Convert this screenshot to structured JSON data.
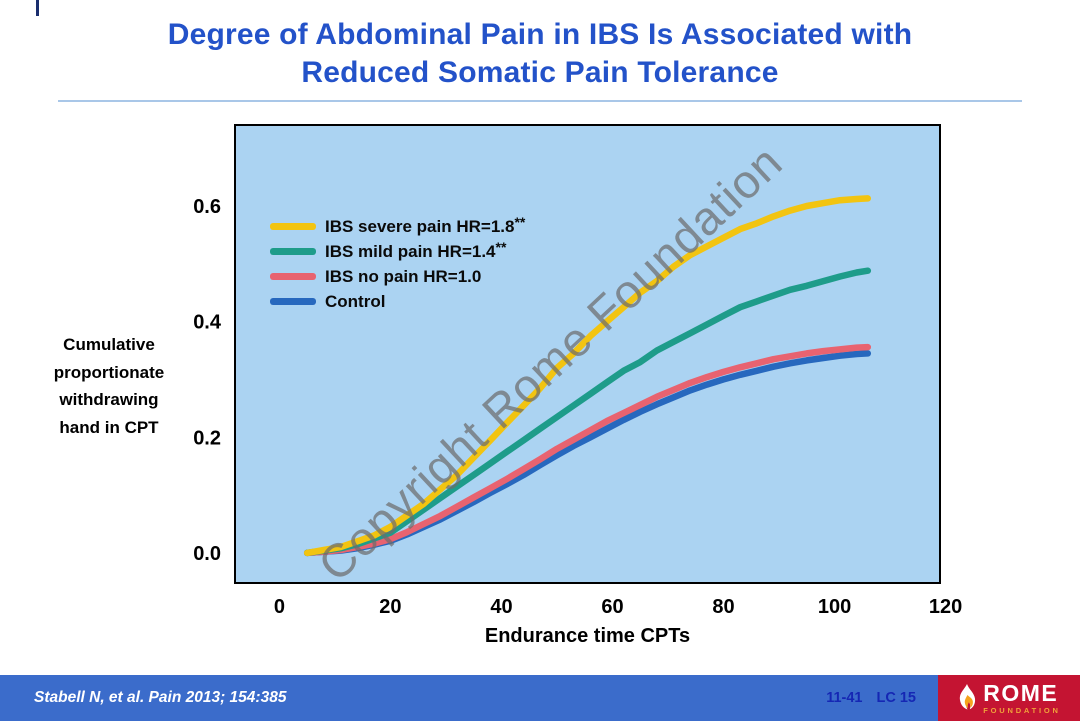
{
  "slide": {
    "title_line1": "Degree of Abdominal Pain in IBS Is Associated with",
    "title_line2": "Reduced Somatic Pain Tolerance",
    "watermark": "Copyright Rome Foundation",
    "footer": {
      "citation": "Stabell N, et al. Pain 2013; 154:385",
      "slide_number": "11-41",
      "code": "LC 15",
      "logo_text": "ROME",
      "logo_subtext": "FOUNDATION"
    }
  },
  "chart_data": {
    "type": "line",
    "title": "",
    "xlabel": "Endurance time CPTs",
    "ylabel": "Cumulative proportionate withdrawing hand in CPT",
    "ylabel_lines": [
      "Cumulative",
      "proportionate",
      "withdrawing",
      "hand in CPT"
    ],
    "xlim": [
      0,
      120
    ],
    "ylim": [
      0,
      0.65
    ],
    "xticks": [
      0,
      20,
      40,
      60,
      80,
      100,
      120
    ],
    "yticks": [
      0,
      0.2,
      0.4,
      0.6
    ],
    "grid": false,
    "legend_position": "top-left",
    "plot_bg": "#ABD3F2",
    "x": [
      5,
      8,
      11,
      14,
      17,
      20,
      23,
      26,
      29,
      32,
      35,
      38,
      41,
      44,
      47,
      50,
      53,
      56,
      59,
      62,
      65,
      68,
      71,
      74,
      77,
      80,
      83,
      86,
      89,
      92,
      95,
      98,
      101,
      104,
      106
    ],
    "series": [
      {
        "label": "IBS severe pain HR=1.8",
        "sup": "**",
        "color": "#F2C411",
        "values": [
          0,
          0.005,
          0.01,
          0.02,
          0.03,
          0.045,
          0.065,
          0.085,
          0.11,
          0.135,
          0.165,
          0.195,
          0.225,
          0.255,
          0.285,
          0.32,
          0.345,
          0.375,
          0.4,
          0.425,
          0.45,
          0.47,
          0.495,
          0.515,
          0.53,
          0.545,
          0.56,
          0.57,
          0.582,
          0.592,
          0.6,
          0.605,
          0.61,
          0.612,
          0.613
        ]
      },
      {
        "label": "IBS mild pain HR=1.4",
        "sup": "**",
        "color": "#1E9C8A",
        "values": [
          0,
          0.004,
          0.008,
          0.015,
          0.025,
          0.035,
          0.055,
          0.075,
          0.095,
          0.115,
          0.135,
          0.155,
          0.175,
          0.195,
          0.215,
          0.235,
          0.255,
          0.275,
          0.295,
          0.315,
          0.33,
          0.35,
          0.365,
          0.38,
          0.395,
          0.41,
          0.425,
          0.435,
          0.445,
          0.455,
          0.462,
          0.47,
          0.478,
          0.485,
          0.488
        ]
      },
      {
        "label": "IBS no pain HR=1.0",
        "sup": "",
        "color": "#E86370",
        "values": [
          0,
          0.002,
          0.005,
          0.01,
          0.016,
          0.024,
          0.036,
          0.05,
          0.064,
          0.08,
          0.096,
          0.112,
          0.128,
          0.145,
          0.162,
          0.18,
          0.196,
          0.212,
          0.228,
          0.242,
          0.256,
          0.27,
          0.282,
          0.294,
          0.304,
          0.313,
          0.321,
          0.328,
          0.335,
          0.34,
          0.345,
          0.349,
          0.352,
          0.355,
          0.356
        ]
      },
      {
        "label": "Control",
        "sup": "",
        "color": "#2768BE",
        "values": [
          0,
          0.002,
          0.004,
          0.008,
          0.014,
          0.021,
          0.032,
          0.045,
          0.058,
          0.073,
          0.088,
          0.104,
          0.119,
          0.135,
          0.152,
          0.169,
          0.185,
          0.2,
          0.215,
          0.23,
          0.244,
          0.257,
          0.269,
          0.281,
          0.291,
          0.3,
          0.308,
          0.315,
          0.322,
          0.328,
          0.333,
          0.337,
          0.341,
          0.344,
          0.345
        ]
      }
    ]
  }
}
